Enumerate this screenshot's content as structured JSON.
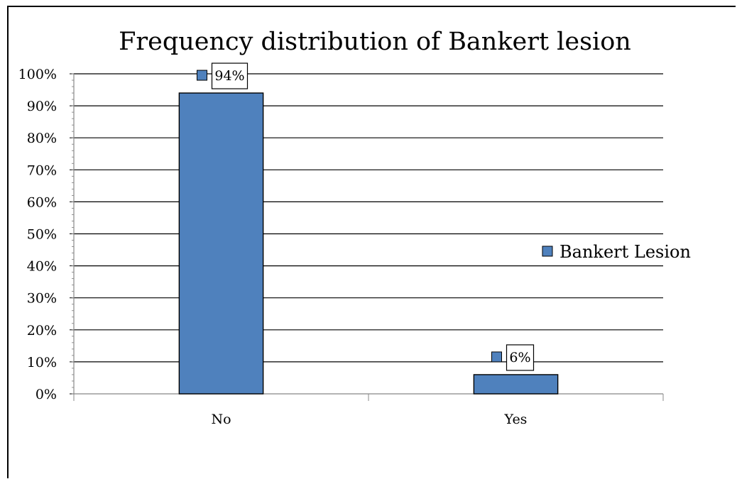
{
  "chart_data": {
    "type": "bar",
    "title": "Frequency distribution of Bankert lesion",
    "categories": [
      "No",
      "Yes"
    ],
    "series": [
      {
        "name": "Bankert Lesion",
        "values": [
          94,
          6
        ],
        "color": "#4F81BD"
      }
    ],
    "data_labels": [
      "94%",
      "6%"
    ],
    "ylim": [
      0,
      100
    ],
    "y_ticks": [
      "0%",
      "10%",
      "20%",
      "30%",
      "40%",
      "50%",
      "60%",
      "70%",
      "80%",
      "90%",
      "100%"
    ],
    "xlabel": "",
    "ylabel": "",
    "grid": true,
    "legend_position": "right"
  }
}
